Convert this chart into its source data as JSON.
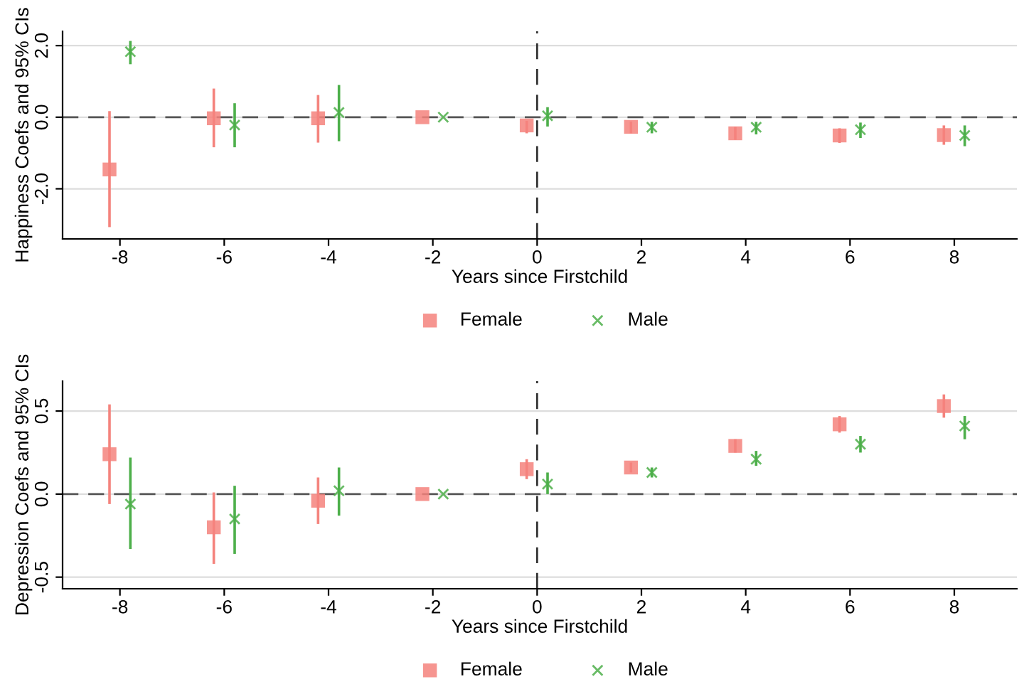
{
  "chart_data": [
    {
      "type": "scatter",
      "ylabel": "Happiness Coefs and 95% CIs",
      "xlabel": "Years since Firstchild",
      "xlim": [
        -9.1,
        9.2
      ],
      "xticks": [
        -8,
        -6,
        -4,
        -2,
        0,
        2,
        4,
        6,
        8
      ],
      "ylim": [
        -3.4,
        2.4
      ],
      "yticks": [
        {
          "value": -2,
          "label": "-2.0"
        },
        {
          "value": 0,
          "label": "0.0"
        },
        {
          "value": 2,
          "label": "2.0"
        }
      ],
      "grid": "y",
      "legend": "bottom",
      "ref_lines": [
        {
          "axis": "y",
          "value": 0,
          "line_style": "dashed",
          "color": "#555555"
        },
        {
          "axis": "x",
          "value": 0,
          "line_style": "dashed",
          "color": "#333333"
        }
      ],
      "series": [
        {
          "name": "Female",
          "color": "#f4837d",
          "marker": "square",
          "x": [
            -8.2,
            -6.2,
            -4.2,
            -2.2,
            -0.2,
            1.8,
            3.8,
            5.8,
            7.8
          ],
          "values": [
            -1.46,
            -0.03,
            -0.03,
            0,
            -0.23,
            -0.27,
            -0.45,
            -0.51,
            -0.5
          ],
          "errors": [
            [
              -3.07,
              0.17
            ],
            [
              -0.84,
              0.8
            ],
            [
              -0.71,
              0.62
            ],
            null,
            [
              -0.45,
              -0.1
            ],
            [
              -0.45,
              -0.12
            ],
            [
              -0.63,
              -0.27
            ],
            [
              -0.72,
              -0.31
            ],
            [
              -0.77,
              -0.23
            ]
          ]
        },
        {
          "name": "Male",
          "color": "#4daf4a",
          "marker": "cross",
          "x": [
            -7.8,
            -5.8,
            -3.8,
            -1.8,
            0.2,
            2.2,
            4.2,
            6.2,
            8.2
          ],
          "values": [
            1.83,
            -0.22,
            0.13,
            0,
            0.04,
            -0.28,
            -0.28,
            -0.35,
            -0.51
          ],
          "errors": [
            [
              1.48,
              2.13
            ],
            [
              -0.84,
              0.39
            ],
            [
              -0.67,
              0.9
            ],
            null,
            [
              -0.26,
              0.28
            ],
            [
              -0.45,
              -0.13
            ],
            [
              -0.48,
              -0.13
            ],
            [
              -0.58,
              -0.15
            ],
            [
              -0.81,
              -0.23
            ]
          ]
        }
      ]
    },
    {
      "type": "scatter",
      "ylabel": "Depression Coefs and 95% CIs",
      "xlabel": "Years since Firstchild",
      "xlim": [
        -9.1,
        9.2
      ],
      "xticks": [
        -8,
        -6,
        -4,
        -2,
        0,
        2,
        4,
        6,
        8
      ],
      "ylim": [
        -0.57,
        0.68
      ],
      "yticks": [
        {
          "value": -0.5,
          "label": "-0.5"
        },
        {
          "value": 0,
          "label": "0.0"
        },
        {
          "value": 0.5,
          "label": "0.5"
        }
      ],
      "grid": "y",
      "legend": "bottom",
      "ref_lines": [
        {
          "axis": "y",
          "value": 0,
          "line_style": "dashed",
          "color": "#555555"
        },
        {
          "axis": "x",
          "value": 0,
          "line_style": "dashed",
          "color": "#333333"
        }
      ],
      "series": [
        {
          "name": "Female",
          "color": "#f4837d",
          "marker": "square",
          "x": [
            -8.2,
            -6.2,
            -4.2,
            -2.2,
            -0.2,
            1.8,
            3.8,
            5.8,
            7.8
          ],
          "values": [
            0.24,
            -0.2,
            -0.04,
            0,
            0.15,
            0.16,
            0.29,
            0.42,
            0.53
          ],
          "errors": [
            [
              -0.06,
              0.54
            ],
            [
              -0.42,
              0.01
            ],
            [
              -0.18,
              0.1
            ],
            null,
            [
              0.09,
              0.21
            ],
            [
              0.13,
              0.19
            ],
            [
              0.25,
              0.33
            ],
            [
              0.37,
              0.47
            ],
            [
              0.46,
              0.6
            ]
          ]
        },
        {
          "name": "Male",
          "color": "#4daf4a",
          "marker": "cross",
          "x": [
            -7.8,
            -5.8,
            -3.8,
            -1.8,
            0.2,
            2.2,
            4.2,
            6.2,
            8.2
          ],
          "values": [
            -0.06,
            -0.15,
            0.02,
            0,
            0.06,
            0.13,
            0.21,
            0.3,
            0.41
          ],
          "errors": [
            [
              -0.33,
              0.22
            ],
            [
              -0.36,
              0.05
            ],
            [
              -0.13,
              0.16
            ],
            null,
            [
              0.0,
              0.13
            ],
            [
              0.1,
              0.16
            ],
            [
              0.17,
              0.26
            ],
            [
              0.25,
              0.35
            ],
            [
              0.33,
              0.47
            ]
          ]
        }
      ]
    }
  ]
}
